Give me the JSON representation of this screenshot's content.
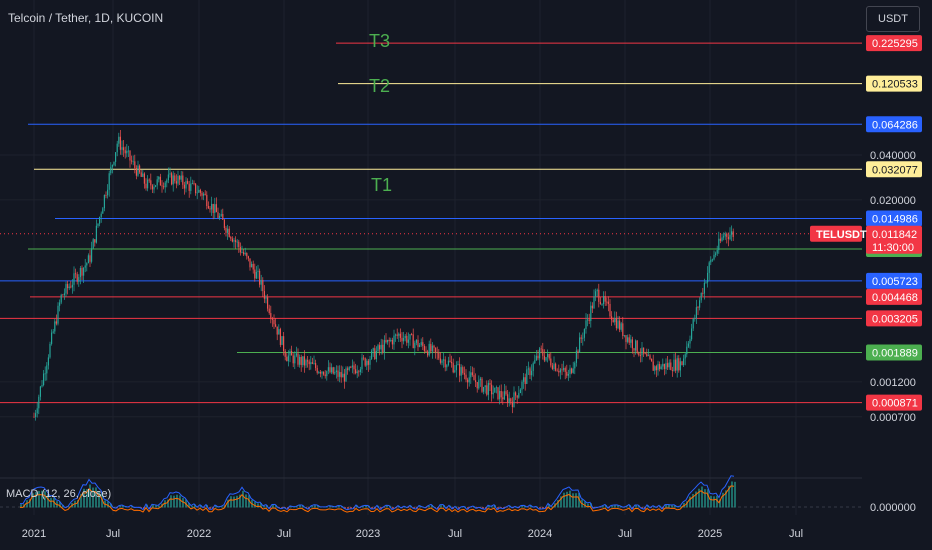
{
  "header": {
    "symbol_title": "Telcoin / Tether, 1D, KUCOIN",
    "currency_button": "USDT"
  },
  "macd": {
    "label": "MACD (12, 26, close)",
    "zero_value": "0.000000"
  },
  "time_axis": [
    "2021",
    "Jul",
    "2022",
    "Jul",
    "2023",
    "Jul",
    "2024",
    "Jul",
    "2025",
    "Jul"
  ],
  "price_axis_ticks": [
    "0.040000",
    "0.020000",
    "0.001200",
    "0.000700"
  ],
  "colors": {
    "background": "#131722",
    "up": "#26a69a",
    "down": "#ef5350",
    "red_level": "#f23645",
    "yellow_level": "#ffee99",
    "blue_level": "#2962ff",
    "green_level": "#4caf50",
    "target_text": "#4caf50"
  },
  "chart_data": {
    "type": "candlestick",
    "symbol": "TELUSDT",
    "current_price": "0.011842",
    "countdown": "11:30:00",
    "x": [
      "2021-01",
      "2021-03",
      "2021-05",
      "2021-07",
      "2021-09",
      "2021-11",
      "2022-01",
      "2022-03",
      "2022-05",
      "2022-07",
      "2022-09",
      "2022-11",
      "2023-01",
      "2023-03",
      "2023-05",
      "2023-07",
      "2023-09",
      "2023-11",
      "2024-01",
      "2024-03",
      "2024-05",
      "2024-07",
      "2024-09",
      "2024-11",
      "2025-01",
      "2025-02"
    ],
    "close": [
      0.0007,
      0.0045,
      0.008,
      0.05,
      0.025,
      0.028,
      0.022,
      0.012,
      0.006,
      0.0018,
      0.0015,
      0.0013,
      0.0018,
      0.0025,
      0.002,
      0.0015,
      0.0011,
      0.0009,
      0.0019,
      0.0013,
      0.0048,
      0.0025,
      0.0015,
      0.0016,
      0.0075,
      0.0118
    ],
    "price_lines": [
      {
        "value": "0.225295",
        "color": "red",
        "target": "T3"
      },
      {
        "value": "0.120533",
        "color": "yellow",
        "target": "T2"
      },
      {
        "value": "0.064286",
        "color": "blue"
      },
      {
        "value": "0.032077",
        "color": "yellow",
        "target": "T1"
      },
      {
        "value": "0.014986",
        "color": "blue"
      },
      {
        "value": "0.009362",
        "color": "green"
      },
      {
        "value": "0.005723",
        "color": "blue"
      },
      {
        "value": "0.004468",
        "color": "red"
      },
      {
        "value": "0.003205",
        "color": "red"
      },
      {
        "value": "0.001889",
        "color": "green"
      },
      {
        "value": "0.000871",
        "color": "red"
      }
    ],
    "scale": "log",
    "xlabel": "",
    "ylabel": ""
  }
}
